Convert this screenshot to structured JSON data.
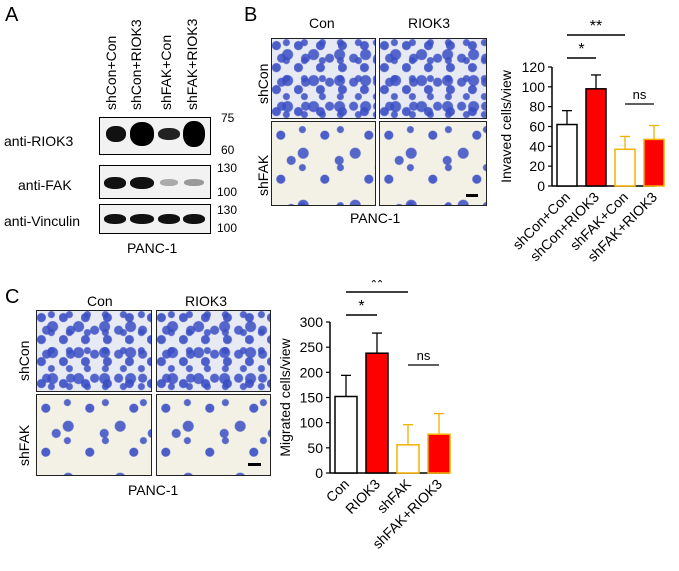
{
  "panelA": {
    "letter": "A",
    "lanes": [
      "shCon+Con",
      "shCon+RIOK3",
      "shFAK+Con",
      "shFAK+RIOK3"
    ],
    "blots": [
      "anti-RIOK3",
      "anti-FAK",
      "anti-Vinculin"
    ],
    "markers": [
      "75",
      "60",
      "130",
      "100",
      "130",
      "100"
    ],
    "cell_line": "PANC-1"
  },
  "panelB": {
    "letter": "B",
    "col_labels": [
      "Con",
      "RIOK3"
    ],
    "row_labels": [
      "shCon",
      "shFAK"
    ],
    "cell_line": "PANC-1",
    "sig": [
      "*",
      "**",
      "ns"
    ],
    "chart_data": {
      "type": "bar",
      "categories": [
        "shCon+Con",
        "shCon+RIOK3",
        "shFAK+Con",
        "shFAK+RIOK3"
      ],
      "values": [
        62,
        98,
        37,
        47
      ],
      "errors": [
        14,
        14,
        13,
        14
      ],
      "ylabel": "Invaved cells/view",
      "ylim": [
        0,
        120
      ],
      "yticks": [
        "0",
        "20",
        "40",
        "60",
        "80",
        "100",
        "120"
      ],
      "fills": [
        "#ffffff",
        "#ff0000",
        "#ffffff",
        "#ff0000"
      ],
      "edges": [
        "#000000",
        "#000000",
        "#f2b100",
        "#f2b100"
      ]
    }
  },
  "panelC": {
    "letter": "C",
    "col_labels": [
      "Con",
      "RIOK3"
    ],
    "row_labels": [
      "shCon",
      "shFAK"
    ],
    "cell_line": "PANC-1",
    "sig": [
      "*",
      "**",
      "ns"
    ],
    "chart_data": {
      "type": "bar",
      "categories": [
        "Con",
        "RIOK3",
        "shFAK",
        "shFAK+RIOK3"
      ],
      "values": [
        152,
        238,
        56,
        77
      ],
      "errors": [
        42,
        40,
        40,
        41
      ],
      "ylabel": "Migrated cells/view",
      "ylim": [
        0,
        300
      ],
      "yticks": [
        "0",
        "50",
        "100",
        "150",
        "200",
        "250",
        "300"
      ],
      "fills": [
        "#ffffff",
        "#ff0000",
        "#ffffff",
        "#ff0000"
      ],
      "edges": [
        "#000000",
        "#000000",
        "#f2b100",
        "#f2b100"
      ]
    }
  }
}
